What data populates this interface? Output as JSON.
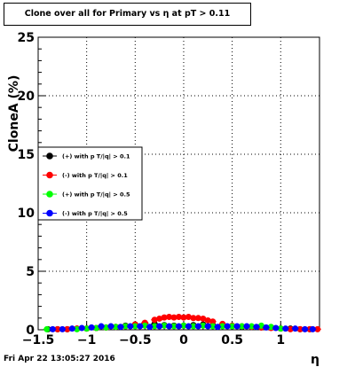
{
  "chart_data": {
    "type": "scatter",
    "title": "Clone  over all for Primary vs   η at pT > 0.11",
    "xlabel": "η",
    "ylabel": "CloneA (%)",
    "xlim": [
      -1.5,
      1.4
    ],
    "ylim": [
      0,
      25
    ],
    "x_ticks": [
      -1.5,
      -1,
      -0.5,
      0,
      0.5,
      1
    ],
    "x_tick_labels": [
      "−1.5",
      "−1",
      "−0.5",
      "0",
      "0.5",
      "1"
    ],
    "y_ticks": [
      0,
      5,
      10,
      15,
      20,
      25
    ],
    "y_tick_labels": [
      "0",
      "5",
      "10",
      "15",
      "20",
      "25"
    ],
    "grid": true,
    "legend_position": "middle-left",
    "series": [
      {
        "name": "(+) with p T/|q| > 0.1",
        "color": "#000000",
        "x": [
          -1.4,
          -1.3,
          -1.2,
          -1.1,
          -1.0,
          -0.9,
          -0.8,
          -0.7,
          -0.6,
          -0.5,
          -0.4,
          -0.3,
          -0.2,
          -0.1,
          0.0,
          0.1,
          0.2,
          0.3,
          0.4,
          0.5,
          0.6,
          0.7,
          0.8,
          0.9,
          1.0,
          1.1,
          1.2,
          1.3
        ],
        "y": [
          0.05,
          0.05,
          0.05,
          0.1,
          0.1,
          0.15,
          0.2,
          0.25,
          0.35,
          0.45,
          0.55,
          0.5,
          0.4,
          0.35,
          0.35,
          0.4,
          0.45,
          0.4,
          0.35,
          0.3,
          0.25,
          0.25,
          0.2,
          0.2,
          0.1,
          0.1,
          0.05,
          0.05
        ]
      },
      {
        "name": "(-) with p T/|q| > 0.1",
        "color": "#ff0000",
        "x": [
          -1.3,
          -1.2,
          -1.1,
          -1.0,
          -0.9,
          -0.8,
          -0.7,
          -0.6,
          -0.5,
          -0.4,
          -0.3,
          -0.25,
          -0.2,
          -0.15,
          -0.1,
          -0.05,
          0.0,
          0.05,
          0.1,
          0.15,
          0.2,
          0.25,
          0.3,
          0.4,
          0.5,
          0.6,
          0.7,
          0.8,
          0.9,
          1.0,
          1.1,
          1.2,
          1.3,
          1.38
        ],
        "y": [
          0.05,
          0.05,
          0.1,
          0.1,
          0.15,
          0.2,
          0.25,
          0.3,
          0.45,
          0.6,
          0.85,
          0.95,
          1.05,
          1.1,
          1.05,
          1.1,
          1.05,
          1.1,
          1.0,
          1.0,
          0.95,
          0.8,
          0.7,
          0.5,
          0.35,
          0.3,
          0.25,
          0.2,
          0.15,
          0.1,
          0.05,
          0.05,
          0.05,
          0.05
        ]
      },
      {
        "name": "(+) with p T/|q| > 0.5",
        "color": "#00ff00",
        "x": [
          -1.41,
          -1.1,
          -1.0,
          -0.9,
          -0.8,
          -0.7,
          -0.6,
          -0.5,
          -0.4,
          -0.3,
          -0.2,
          -0.1,
          0.0,
          0.1,
          0.2,
          0.3,
          0.4,
          0.5,
          0.6,
          0.7,
          0.8,
          0.9,
          1.0
        ],
        "y": [
          0.05,
          0.05,
          0.1,
          0.15,
          0.2,
          0.25,
          0.3,
          0.3,
          0.35,
          0.3,
          0.35,
          0.3,
          0.35,
          0.3,
          0.35,
          0.3,
          0.3,
          0.3,
          0.3,
          0.3,
          0.35,
          0.25,
          0.1
        ]
      },
      {
        "name": "(-) with p T/|q| > 0.5",
        "color": "#0000ff",
        "x": [
          -1.35,
          -1.25,
          -1.15,
          -1.05,
          -0.95,
          -0.85,
          -0.75,
          -0.65,
          -0.55,
          -0.45,
          -0.35,
          -0.25,
          -0.15,
          -0.05,
          0.05,
          0.15,
          0.25,
          0.35,
          0.45,
          0.55,
          0.65,
          0.75,
          0.85,
          0.95,
          1.05,
          1.15,
          1.25,
          1.33
        ],
        "y": [
          0.05,
          0.05,
          0.1,
          0.15,
          0.2,
          0.3,
          0.3,
          0.25,
          0.3,
          0.3,
          0.25,
          0.3,
          0.3,
          0.3,
          0.3,
          0.3,
          0.3,
          0.25,
          0.3,
          0.3,
          0.3,
          0.25,
          0.2,
          0.15,
          0.1,
          0.1,
          0.05,
          0.05
        ]
      }
    ]
  },
  "footer": {
    "timestamp": "Fri Apr 22 13:05:27 2016"
  }
}
